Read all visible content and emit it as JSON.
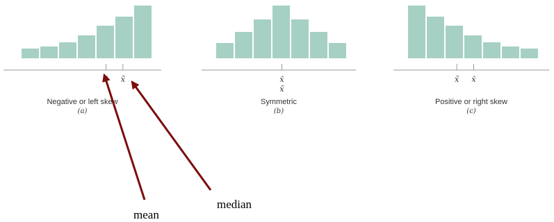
{
  "colors": {
    "bar": "#a6d0c4",
    "axis": "#9a9a9a",
    "arrow": "#7b0c0c"
  },
  "chart_data": [
    {
      "type": "bar",
      "panel_id": "a",
      "caption": "Negative or left skew",
      "sublabel": "(a)",
      "values": [
        14,
        17,
        23,
        33,
        47,
        60,
        76
      ],
      "markers": [
        {
          "name": "mean",
          "symbol": "x̄",
          "position": 4.5
        },
        {
          "name": "median",
          "symbol": "x̃",
          "position": 5.4
        }
      ]
    },
    {
      "type": "bar",
      "panel_id": "b",
      "caption": "Symmetric",
      "sublabel": "(b)",
      "values": [
        22,
        38,
        56,
        76,
        56,
        38,
        22
      ],
      "markers": [
        {
          "name": "mean",
          "symbol": "x̄",
          "position": 3.5
        },
        {
          "name": "median",
          "symbol": "x̃",
          "position": 3.5
        }
      ]
    },
    {
      "type": "bar",
      "panel_id": "c",
      "caption": "Positive or right skew",
      "sublabel": "(c)",
      "values": [
        76,
        60,
        47,
        33,
        23,
        17,
        14
      ],
      "markers": [
        {
          "name": "median",
          "symbol": "x̃",
          "position": 2.6
        },
        {
          "name": "mean",
          "symbol": "x̄",
          "position": 3.5
        }
      ]
    }
  ],
  "annotations": {
    "mean_label": "mean",
    "median_label": "median"
  }
}
